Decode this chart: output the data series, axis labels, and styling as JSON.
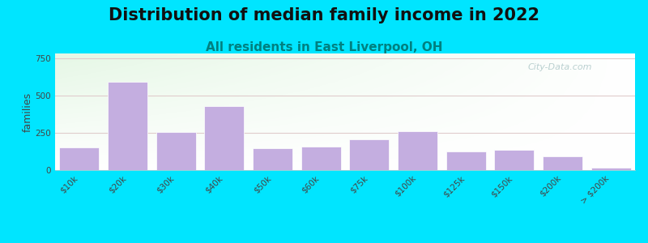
{
  "title": "Distribution of median family income in 2022",
  "subtitle": "All residents in East Liverpool, OH",
  "ylabel": "families",
  "categories": [
    "$10k",
    "$20k",
    "$30k",
    "$40k",
    "$50k",
    "$60k",
    "$75k",
    "$100k",
    "$125k",
    "$150k",
    "$200k",
    "> $200k"
  ],
  "values": [
    150,
    590,
    255,
    430,
    145,
    155,
    205,
    260,
    125,
    135,
    90,
    15
  ],
  "bar_color": "#c4aee0",
  "bar_edge_color": "#ffffff",
  "ylim": [
    0,
    780
  ],
  "yticks": [
    0,
    250,
    500,
    750
  ],
  "background_outer": "#00e5ff",
  "title_fontsize": 15,
  "title_color": "#111111",
  "subtitle_fontsize": 11,
  "subtitle_color": "#008080",
  "ylabel_fontsize": 9,
  "watermark_text": "City-Data.com",
  "watermark_color": "#aec8c8",
  "grid_color": "#e0cccc",
  "tick_label_fontsize": 7.5,
  "tick_label_color": "#444444"
}
